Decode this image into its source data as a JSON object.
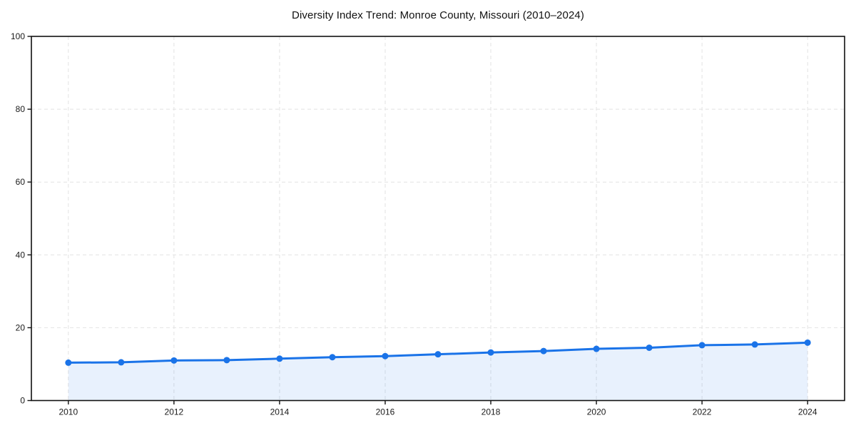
{
  "chart_data": {
    "type": "area",
    "title": "Diversity Index Trend: Monroe County, Missouri (2010–2024)",
    "x": [
      2010,
      2011,
      2012,
      2013,
      2014,
      2015,
      2016,
      2017,
      2018,
      2019,
      2020,
      2021,
      2022,
      2023,
      2024
    ],
    "values": [
      10.4,
      10.5,
      11.0,
      11.1,
      11.5,
      11.9,
      12.2,
      12.7,
      13.2,
      13.6,
      14.2,
      14.5,
      15.2,
      15.4,
      15.9
    ],
    "xlabel": "",
    "ylabel": "",
    "ylim": [
      0,
      100
    ],
    "yticks": [
      0,
      20,
      40,
      60,
      80,
      100
    ],
    "xticks": [
      2010,
      2012,
      2014,
      2016,
      2018,
      2020,
      2022,
      2024
    ],
    "grid": "dashed at labeled ticks, both axes",
    "legend": "none",
    "marker": "circle",
    "colors": {
      "line": "#1a73e8",
      "fill": "#e8f1fd",
      "grid": "#e2e2e2",
      "spine": "#111111",
      "tick_label": "#1a1a1a",
      "title": "#111111",
      "background": "#ffffff"
    }
  }
}
